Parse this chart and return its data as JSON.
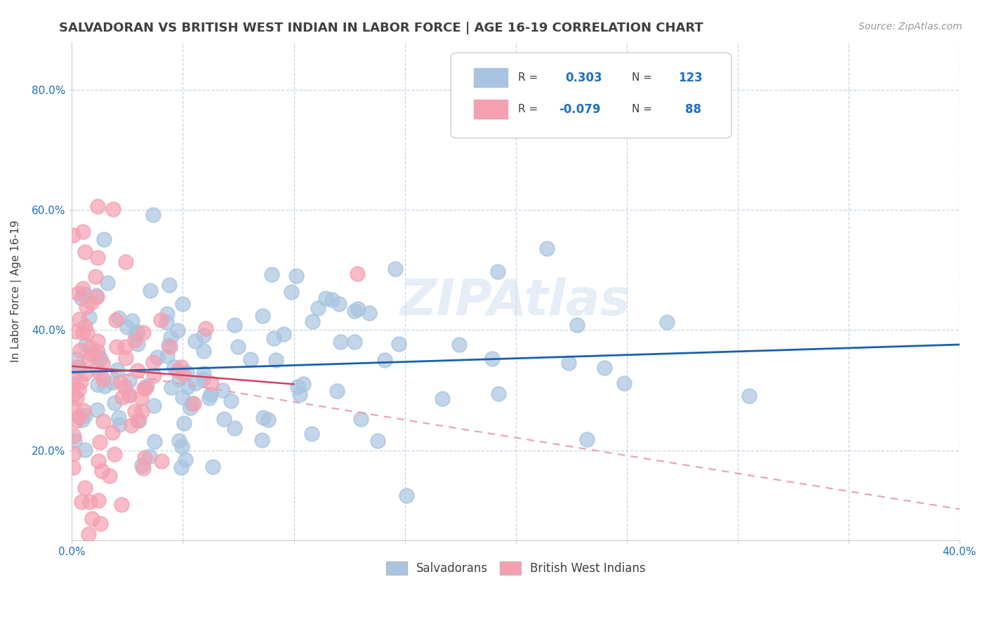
{
  "title": "SALVADORAN VS BRITISH WEST INDIAN IN LABOR FORCE | AGE 16-19 CORRELATION CHART",
  "source_text": "Source: ZipAtlas.com",
  "ylabel": "In Labor Force | Age 16-19",
  "xlim": [
    0.0,
    0.4
  ],
  "ylim": [
    0.05,
    0.88
  ],
  "xticks": [
    0.0,
    0.05,
    0.1,
    0.15,
    0.2,
    0.25,
    0.3,
    0.35,
    0.4
  ],
  "yticks": [
    0.2,
    0.4,
    0.6,
    0.8
  ],
  "salvadoran_color": "#a8c4e0",
  "bwi_color": "#f4a0b0",
  "salvadoran_line_color": "#1a5fb0",
  "bwi_line_solid_color": "#d04060",
  "bwi_line_dashed_color": "#e8a0b0",
  "title_color": "#404040",
  "axis_label_color": "#2070c0",
  "watermark": "ZIPAtlas",
  "R_salvadoran": 0.303,
  "N_salvadoran": 123,
  "R_bwi": -0.079,
  "N_bwi": 88,
  "sal_intercept": 0.33,
  "sal_slope": 0.115,
  "bwi_solid_intercept": 0.34,
  "bwi_solid_slope": -0.3,
  "bwi_dash_intercept": 0.34,
  "bwi_dash_slope": -0.595,
  "background_color": "#ffffff",
  "grid_color": "#c8d4e8",
  "figsize": [
    14.06,
    8.92
  ],
  "dpi": 100
}
